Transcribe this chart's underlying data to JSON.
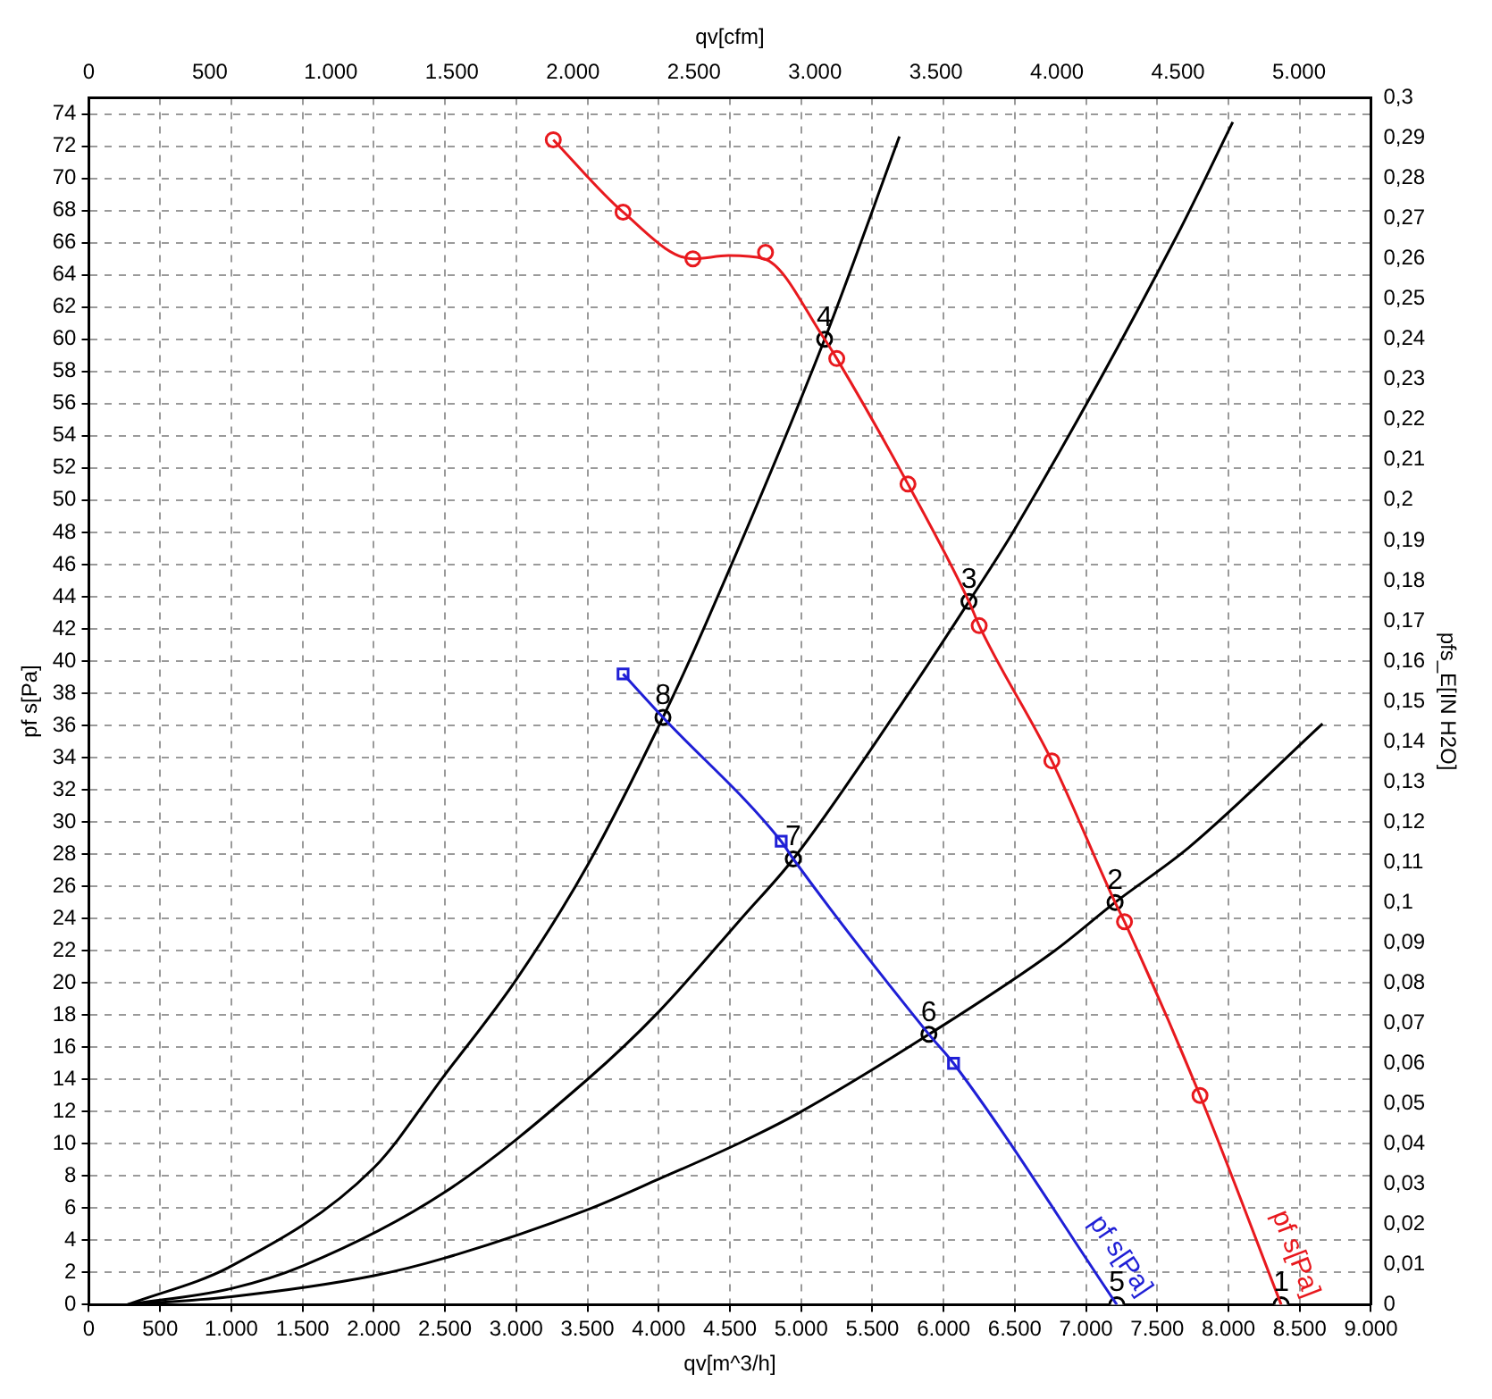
{
  "chart_data": {
    "type": "line",
    "xlabel": "qv[m^3/h]",
    "x2label": "qv[cfm]",
    "ylabel": "pf s[Pa]",
    "y2label": "pfs_E[IN H2O]",
    "xlim": [
      0,
      9000
    ],
    "xticks": [
      0,
      500,
      {
        "value": 1000,
        "label": "1.000"
      },
      {
        "value": 1500,
        "label": "1.500"
      },
      {
        "value": 2000,
        "label": "2.000"
      },
      {
        "value": 2500,
        "label": "2.500"
      },
      {
        "value": 3000,
        "label": "3.000"
      },
      {
        "value": 3500,
        "label": "3.500"
      },
      {
        "value": 4000,
        "label": "4.000"
      },
      {
        "value": 4500,
        "label": "4.500"
      },
      {
        "value": 5000,
        "label": "5.000"
      },
      {
        "value": 5500,
        "label": "5.500"
      },
      {
        "value": 6000,
        "label": "6.000"
      },
      {
        "value": 6500,
        "label": "6.500"
      },
      {
        "value": 7000,
        "label": "7.000"
      },
      {
        "value": 7500,
        "label": "7.500"
      },
      {
        "value": 8000,
        "label": "8.000"
      },
      {
        "value": 8500,
        "label": "8.500"
      },
      {
        "value": 9000,
        "label": "9.000"
      }
    ],
    "x2lim": [
      0,
      5297
    ],
    "x2ticks": [
      0,
      500,
      {
        "value": 1000,
        "label": "1.000"
      },
      {
        "value": 1500,
        "label": "1.500"
      },
      {
        "value": 2000,
        "label": "2.000"
      },
      {
        "value": 2500,
        "label": "2.500"
      },
      {
        "value": 3000,
        "label": "3.000"
      },
      {
        "value": 3500,
        "label": "3.500"
      },
      {
        "value": 4000,
        "label": "4.000"
      },
      {
        "value": 4500,
        "label": "4.500"
      },
      {
        "value": 5000,
        "label": "5.000"
      }
    ],
    "ylim": [
      0,
      75
    ],
    "yticks": [
      0,
      2,
      4,
      6,
      8,
      10,
      12,
      14,
      16,
      18,
      20,
      22,
      24,
      26,
      28,
      30,
      32,
      34,
      36,
      38,
      40,
      42,
      44,
      46,
      48,
      50,
      52,
      54,
      56,
      58,
      60,
      62,
      64,
      66,
      68,
      70,
      72,
      74
    ],
    "y2lim": [
      0,
      0.3
    ],
    "y2ticks": [
      0,
      {
        "value": 0.01,
        "label": "0,01"
      },
      {
        "value": 0.02,
        "label": "0,02"
      },
      {
        "value": 0.03,
        "label": "0,03"
      },
      {
        "value": 0.04,
        "label": "0,04"
      },
      {
        "value": 0.05,
        "label": "0,05"
      },
      {
        "value": 0.06,
        "label": "0,06"
      },
      {
        "value": 0.07,
        "label": "0,07"
      },
      {
        "value": 0.08,
        "label": "0,08"
      },
      {
        "value": 0.09,
        "label": "0,09"
      },
      {
        "value": 0.1,
        "label": "0,1"
      },
      {
        "value": 0.11,
        "label": "0,11"
      },
      {
        "value": 0.12,
        "label": "0,12"
      },
      {
        "value": 0.13,
        "label": "0,13"
      },
      {
        "value": 0.14,
        "label": "0,14"
      },
      {
        "value": 0.15,
        "label": "0,15"
      },
      {
        "value": 0.16,
        "label": "0,16"
      },
      {
        "value": 0.17,
        "label": "0,17"
      },
      {
        "value": 0.18,
        "label": "0,18"
      },
      {
        "value": 0.19,
        "label": "0,19"
      },
      {
        "value": 0.2,
        "label": "0,2"
      },
      {
        "value": 0.21,
        "label": "0,21"
      },
      {
        "value": 0.22,
        "label": "0,22"
      },
      {
        "value": 0.23,
        "label": "0,23"
      },
      {
        "value": 0.24,
        "label": "0,24"
      },
      {
        "value": 0.25,
        "label": "0,25"
      },
      {
        "value": 0.26,
        "label": "0,26"
      },
      {
        "value": 0.27,
        "label": "0,27"
      },
      {
        "value": 0.28,
        "label": "0,28"
      },
      {
        "value": 0.29,
        "label": "0,29"
      },
      {
        "value": 0.3,
        "label": "0,3"
      }
    ],
    "grid": true,
    "legend": false,
    "series": [
      {
        "type": "line",
        "name": "pf s[Pa]",
        "color": "#e8191e",
        "marker": "none",
        "x": [
          3260,
          3750,
          4240,
          4490,
          4740,
          5165,
          5250,
          5750,
          6178,
          6250,
          6760,
          7204,
          7270,
          7800,
          8370
        ],
        "values": [
          72.4,
          67.9,
          65.0,
          65.2,
          65.0,
          60.0,
          58.8,
          51.0,
          43.7,
          42.2,
          33.8,
          25.0,
          23.8,
          13.0,
          0
        ]
      },
      {
        "type": "scatter",
        "color": "#e8191e",
        "marker": "circle",
        "x": [
          3260,
          3750,
          4240,
          4750,
          5250,
          5750,
          6250,
          6760,
          7270,
          7800
        ],
        "values": [
          72.4,
          67.9,
          65.0,
          65.4,
          58.8,
          51.0,
          42.2,
          33.8,
          23.8,
          13.0
        ]
      },
      {
        "type": "line",
        "name": "pf s[Pa]",
        "color": "#1f1fd6",
        "marker": "none",
        "x": [
          3750,
          4030,
          4860,
          4945,
          5897,
          6070,
          7216
        ],
        "values": [
          39.2,
          36.5,
          28.8,
          27.7,
          16.8,
          15.0,
          0
        ]
      },
      {
        "type": "scatter",
        "color": "#1f1fd6",
        "marker": "square",
        "x": [
          3750,
          4860,
          6070
        ],
        "values": [
          39.2,
          28.8,
          15.0
        ]
      },
      {
        "type": "line",
        "color": "#000000",
        "marker": "none",
        "x": [
          270,
          1000,
          2000,
          2500,
          3000,
          3500,
          4030,
          4330,
          5165,
          5690
        ],
        "values": [
          0,
          2.4,
          8.5,
          14.3,
          20.2,
          27.3,
          36.5,
          42.3,
          60.0,
          72.6
        ]
      },
      {
        "type": "line",
        "color": "#000000",
        "marker": "none",
        "x": [
          270,
          1000,
          1500,
          2500,
          3500,
          4000,
          4580,
          4945,
          5710,
          6178,
          6500,
          7630,
          8030
        ],
        "values": [
          0,
          1.0,
          2.4,
          7.0,
          14.0,
          18.2,
          24.0,
          27.7,
          37.4,
          43.7,
          48.2,
          66.3,
          73.5
        ]
      },
      {
        "type": "line",
        "color": "#000000",
        "marker": "none",
        "x": [
          270,
          1000,
          2000,
          2500,
          3500,
          4000,
          4580,
          4980,
          5897,
          6780,
          7204,
          7720,
          8660
        ],
        "values": [
          0,
          0.5,
          1.8,
          2.9,
          5.9,
          7.8,
          10.1,
          11.9,
          16.8,
          22.0,
          25.0,
          28.4,
          36.1
        ]
      },
      {
        "type": "scatter",
        "color": "#000000",
        "marker": "circle",
        "x": [
          8370,
          7204,
          6178,
          5165,
          7216,
          5897,
          4945,
          4030
        ],
        "values": [
          0,
          25.0,
          43.7,
          60.0,
          0,
          16.8,
          27.7,
          36.5
        ]
      }
    ],
    "annotations": [
      {
        "text": "1",
        "x": 8370,
        "y": 0
      },
      {
        "text": "2",
        "x": 7204,
        "y": 25.0
      },
      {
        "text": "3",
        "x": 6178,
        "y": 43.7
      },
      {
        "text": "4",
        "x": 5165,
        "y": 60.0
      },
      {
        "text": "5",
        "x": 7216,
        "y": 0
      },
      {
        "text": "6",
        "x": 5897,
        "y": 16.8
      },
      {
        "text": "7",
        "x": 4945,
        "y": 27.7
      },
      {
        "text": "8",
        "x": 4030,
        "y": 36.5
      }
    ]
  }
}
